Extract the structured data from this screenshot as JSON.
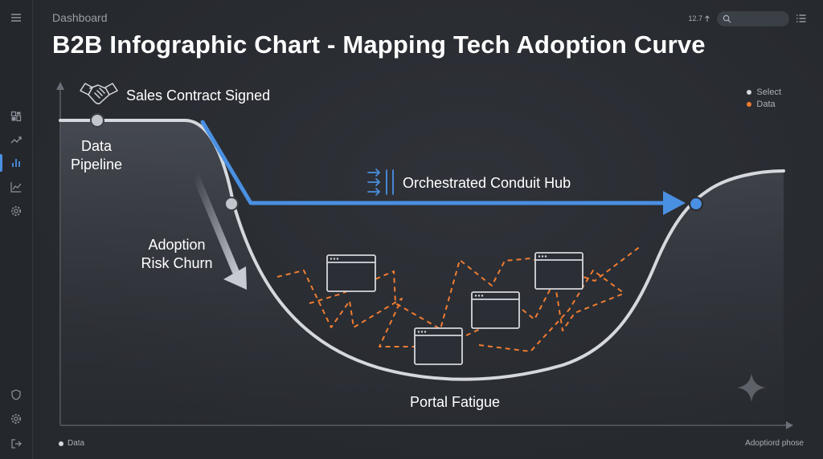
{
  "header": {
    "breadcrumb": "Dashboard",
    "title": "B2B Infographic Chart - Mapping Tech Adoption Curve",
    "zoom": "12.7",
    "search_placeholder": ""
  },
  "legend": {
    "items": [
      {
        "label": "Select",
        "color": "#d5d8dd"
      },
      {
        "label": "Data",
        "color": "#f07c32"
      }
    ]
  },
  "footer": {
    "legend_label": "Data",
    "x_axis_label": "Adoptiord phose"
  },
  "diagram": {
    "labels": {
      "sales_contract": "Sales Contract Signed",
      "data_pipeline_line1": "Data",
      "data_pipeline_line2": "Pipeline",
      "adoption_risk_line1": "Adoption",
      "adoption_risk_line2": "Risk Churn",
      "conduit_hub": "Orchestrated Conduit Hub",
      "portal_fatigue": "Portal Fatigue"
    },
    "colors": {
      "curve": "#d5d8dd",
      "accent_blue": "#4a90e2",
      "chaos_orange": "#f07c32"
    }
  },
  "sidebar": {
    "icons": [
      "menu-icon",
      "dashboard-icon",
      "trend-icon",
      "bar-chart-icon",
      "line-chart-icon",
      "settings-icon",
      "shield-icon",
      "settings-icon",
      "logout-icon"
    ]
  }
}
